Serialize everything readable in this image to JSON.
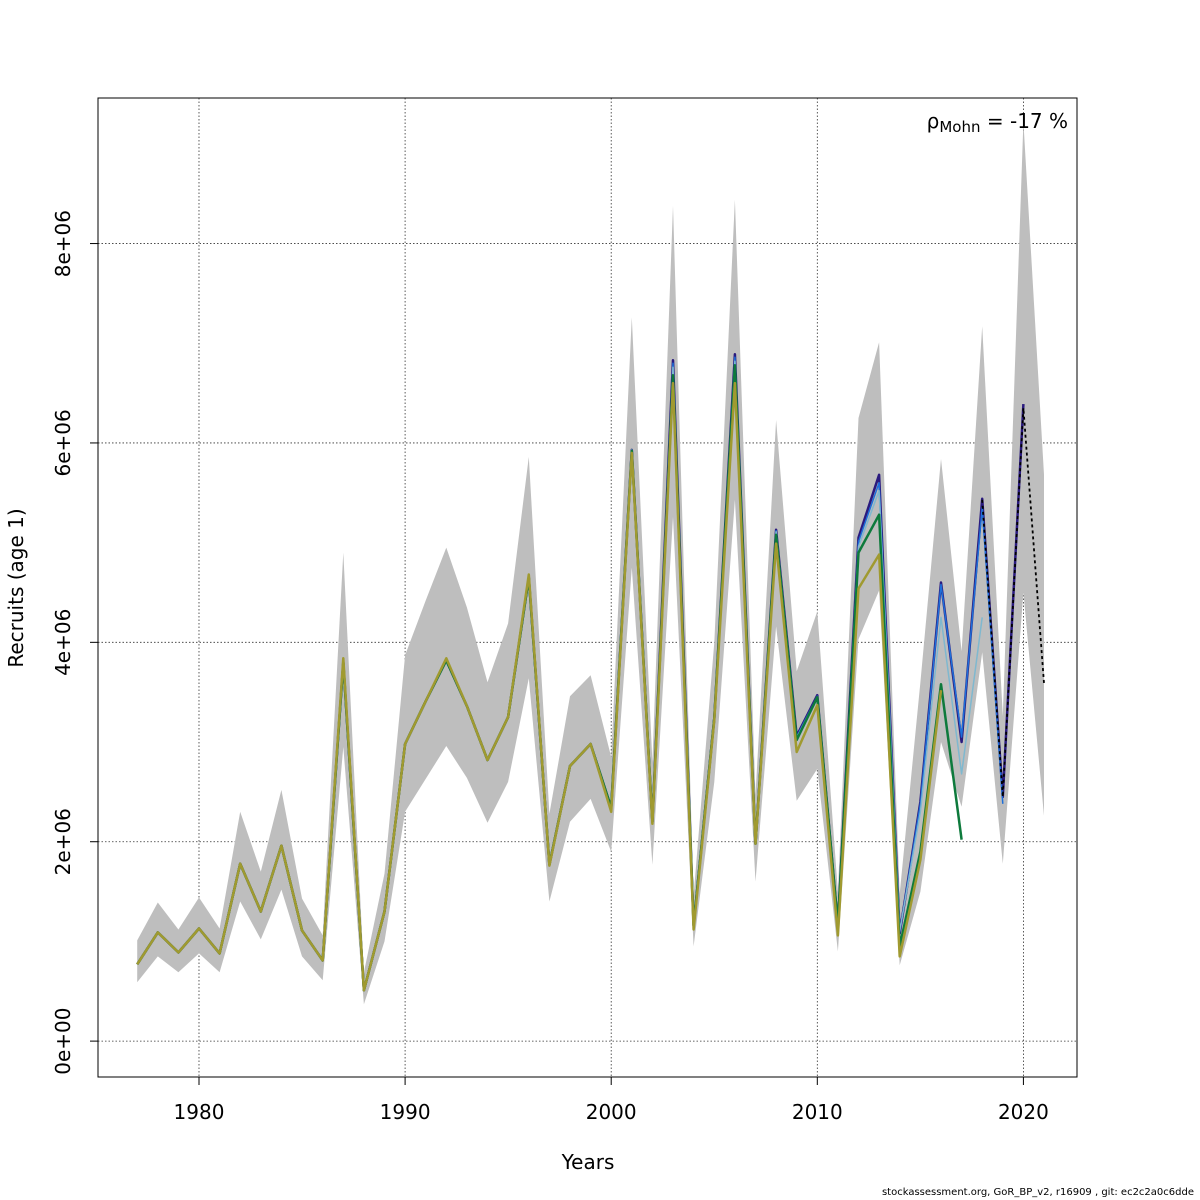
{
  "chart_data": {
    "type": "line",
    "xlabel": "Years",
    "ylabel": "Recruits (age 1)",
    "xlim": [
      1975.1,
      2022.6
    ],
    "ylim": [
      -360000,
      9460000
    ],
    "x_ticks": [
      1980,
      1990,
      2000,
      2010,
      2020
    ],
    "x_tick_labels": [
      "1980",
      "1990",
      "2000",
      "2010",
      "2020"
    ],
    "y_ticks": [
      0,
      2000000,
      4000000,
      6000000,
      8000000
    ],
    "y_tick_labels": [
      "0e+00",
      "2e+06",
      "4e+06",
      "6e+06",
      "8e+06"
    ],
    "grid": true,
    "annotation": {
      "symbol": "ρ",
      "subscript": "Mohn",
      "text": " = -17 %",
      "position": "top-right"
    },
    "confidence_band": {
      "color": "#bebebe",
      "x": [
        1977,
        1978,
        1979,
        1980,
        1981,
        1982,
        1983,
        1984,
        1985,
        1986,
        1987,
        1988,
        1989,
        1990,
        1991,
        1992,
        1993,
        1994,
        1995,
        1996,
        1997,
        1998,
        1999,
        2000,
        2001,
        2002,
        2003,
        2004,
        2005,
        2006,
        2007,
        2008,
        2009,
        2010,
        2011,
        2012,
        2013,
        2014,
        2015,
        2016,
        2017,
        2018,
        2019,
        2020,
        2021
      ],
      "lower": [
        590000,
        850000,
        690000,
        880000,
        690000,
        1400000,
        1020000,
        1520000,
        850000,
        610000,
        2950000,
        370000,
        1000000,
        2300000,
        2630000,
        2960000,
        2640000,
        2190000,
        2600000,
        3640000,
        1400000,
        2200000,
        2430000,
        1900000,
        4750000,
        1770000,
        5260000,
        950000,
        2600000,
        5430000,
        1600000,
        4160000,
        2410000,
        2730000,
        900000,
        4030000,
        4520000,
        760000,
        1500000,
        3000000,
        2350000,
        3900000,
        1780000,
        4500000,
        2260000
      ],
      "upper": [
        1010000,
        1390000,
        1120000,
        1440000,
        1130000,
        2300000,
        1700000,
        2520000,
        1430000,
        1060000,
        4900000,
        690000,
        1680000,
        3870000,
        4420000,
        4950000,
        4350000,
        3600000,
        4190000,
        5860000,
        2280000,
        3460000,
        3670000,
        2850000,
        7260000,
        2800000,
        8380000,
        1460000,
        4000000,
        8440000,
        2470000,
        6230000,
        3710000,
        4310000,
        1500000,
        6250000,
        7010000,
        1480000,
        3600000,
        5840000,
        3910000,
        7170000,
        3260000,
        9220000,
        5680000
      ]
    },
    "series": [
      {
        "color": "#2a1a7e",
        "width": 2.5,
        "x": [
          1977,
          1978,
          1979,
          1980,
          1981,
          1982,
          1983,
          1984,
          1985,
          1986,
          1987,
          1988,
          1989,
          1990,
          1991,
          1992,
          1993,
          1994,
          1995,
          1996,
          1997,
          1998,
          1999,
          2000,
          2001,
          2002,
          2003,
          2004,
          2005,
          2006,
          2007,
          2008,
          2009,
          2010,
          2011,
          2012,
          2013,
          2014,
          2015,
          2016,
          2017,
          2018,
          2019,
          2020
        ],
        "values": [
          770000,
          1090000,
          890000,
          1130000,
          880000,
          1780000,
          1300000,
          1960000,
          1110000,
          810000,
          3800000,
          510000,
          1300000,
          2980000,
          3410000,
          3820000,
          3360000,
          2820000,
          3250000,
          4650000,
          1770000,
          2760000,
          2980000,
          2340000,
          5930000,
          2200000,
          6830000,
          1160000,
          3240000,
          6890000,
          1980000,
          5130000,
          3060000,
          3470000,
          1170000,
          5050000,
          5680000,
          1080000,
          2400000,
          4600000,
          3000000,
          5440000,
          2450000,
          6390000
        ]
      },
      {
        "color": "#1e6fd9",
        "width": 1.5,
        "x": [
          1977,
          1978,
          1979,
          1980,
          1981,
          1982,
          1983,
          1984,
          1985,
          1986,
          1987,
          1988,
          1989,
          1990,
          1991,
          1992,
          1993,
          1994,
          1995,
          1996,
          1997,
          1998,
          1999,
          2000,
          2001,
          2002,
          2003,
          2004,
          2005,
          2006,
          2007,
          2008,
          2009,
          2010,
          2011,
          2012,
          2013,
          2014,
          2015,
          2016,
          2017,
          2018,
          2019
        ],
        "values": [
          770000,
          1090000,
          890000,
          1130000,
          880000,
          1780000,
          1300000,
          1960000,
          1110000,
          810000,
          3800000,
          510000,
          1300000,
          2980000,
          3410000,
          3820000,
          3360000,
          2820000,
          3250000,
          4650000,
          1770000,
          2760000,
          2980000,
          2340000,
          5930000,
          2200000,
          6800000,
          1160000,
          3240000,
          6860000,
          1980000,
          5120000,
          3050000,
          3460000,
          1170000,
          5010000,
          5600000,
          1090000,
          2380000,
          4580000,
          3050000,
          5350000,
          2380000
        ]
      },
      {
        "color": "#7fb8cf",
        "width": 1.5,
        "x": [
          1977,
          1978,
          1979,
          1980,
          1981,
          1982,
          1983,
          1984,
          1985,
          1986,
          1987,
          1988,
          1989,
          1990,
          1991,
          1992,
          1993,
          1994,
          1995,
          1996,
          1997,
          1998,
          1999,
          2000,
          2001,
          2002,
          2003,
          2004,
          2005,
          2006,
          2007,
          2008,
          2009,
          2010,
          2011,
          2012,
          2013,
          2014,
          2015,
          2016,
          2017,
          2018
        ],
        "values": [
          770000,
          1090000,
          890000,
          1130000,
          880000,
          1780000,
          1300000,
          1960000,
          1110000,
          810000,
          3800000,
          510000,
          1300000,
          2980000,
          3410000,
          3820000,
          3360000,
          2820000,
          3250000,
          4650000,
          1770000,
          2760000,
          2980000,
          2340000,
          5930000,
          2200000,
          6760000,
          1160000,
          3240000,
          6820000,
          1980000,
          5110000,
          3040000,
          3450000,
          1170000,
          4960000,
          5520000,
          1100000,
          2300000,
          4250000,
          2680000,
          4250000
        ]
      },
      {
        "color": "#0e7a3c",
        "width": 2.5,
        "x": [
          1977,
          1978,
          1979,
          1980,
          1981,
          1982,
          1983,
          1984,
          1985,
          1986,
          1987,
          1988,
          1989,
          1990,
          1991,
          1992,
          1993,
          1994,
          1995,
          1996,
          1997,
          1998,
          1999,
          2000,
          2001,
          2002,
          2003,
          2004,
          2005,
          2006,
          2007,
          2008,
          2009,
          2010,
          2011,
          2012,
          2013,
          2014,
          2015,
          2016,
          2017
        ],
        "values": [
          770000,
          1090000,
          890000,
          1130000,
          880000,
          1780000,
          1300000,
          1960000,
          1110000,
          810000,
          3800000,
          510000,
          1300000,
          2980000,
          3410000,
          3820000,
          3360000,
          2820000,
          3250000,
          4650000,
          1770000,
          2760000,
          2980000,
          2340000,
          5920000,
          2200000,
          6680000,
          1160000,
          3240000,
          6780000,
          1980000,
          5080000,
          3020000,
          3450000,
          1170000,
          4900000,
          5280000,
          950000,
          1900000,
          3580000,
          2020000
        ]
      },
      {
        "color": "#a09a30",
        "width": 2.5,
        "x": [
          1977,
          1978,
          1979,
          1980,
          1981,
          1982,
          1983,
          1984,
          1985,
          1986,
          1987,
          1988,
          1989,
          1990,
          1991,
          1992,
          1993,
          1994,
          1995,
          1996,
          1997,
          1998,
          1999,
          2000,
          2001,
          2002,
          2003,
          2004,
          2005,
          2006,
          2007,
          2008,
          2009,
          2010,
          2011,
          2012,
          2013,
          2014,
          2015,
          2016
        ],
        "values": [
          770000,
          1090000,
          890000,
          1130000,
          880000,
          1780000,
          1300000,
          1960000,
          1110000,
          810000,
          3840000,
          510000,
          1300000,
          2980000,
          3410000,
          3840000,
          3360000,
          2820000,
          3250000,
          4680000,
          1760000,
          2760000,
          2980000,
          2300000,
          5900000,
          2180000,
          6600000,
          1120000,
          3220000,
          6600000,
          1980000,
          4990000,
          2900000,
          3370000,
          1060000,
          4540000,
          4880000,
          850000,
          1820000,
          3520000
        ]
      },
      {
        "color": "#000000",
        "width": 1.8,
        "dashed": true,
        "x": [
          2018,
          2019,
          2020,
          2021
        ],
        "values": [
          5430000,
          2450000,
          6350000,
          3590000
        ]
      }
    ]
  },
  "footer_text": "stockassessment.org, GoR_BP_v2, r16909 , git: ec2c2a0c6dde"
}
